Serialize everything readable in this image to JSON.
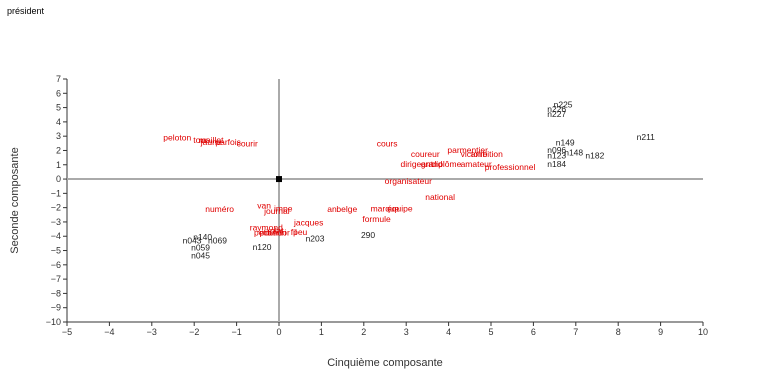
{
  "corner_label": "président",
  "colors": {
    "word": "#e00000",
    "case": "#222222",
    "axis_zero": "#aaaaaa",
    "frame": "#333333",
    "origin_marker": "#000000"
  },
  "chart_data": {
    "type": "scatter",
    "title": "",
    "xlabel": "Cinquième composante",
    "ylabel": "Seconde composante",
    "xlim": [
      -5,
      10
    ],
    "ylim": [
      -10,
      7
    ],
    "xticks": [
      "−5",
      "−4",
      "−3",
      "−2",
      "−1",
      "0",
      "1",
      "2",
      "3",
      "4",
      "5",
      "6",
      "7",
      "8",
      "9",
      "10"
    ],
    "yticks": [
      "−10",
      "−9",
      "−8",
      "−7",
      "−6",
      "−5",
      "−4",
      "−3",
      "−2",
      "−1",
      "0",
      "1",
      "2",
      "3",
      "4",
      "5",
      "6",
      "7"
    ],
    "grid": false,
    "origin_marker": [
      0,
      0
    ],
    "series": [
      {
        "kind": "word",
        "points": [
          {
            "label": "peloton",
            "x": -2.4,
            "y": 2.9
          },
          {
            "label": "tour",
            "x": -1.85,
            "y": 2.75
          },
          {
            "label": "maillot",
            "x": -1.6,
            "y": 2.75
          },
          {
            "label": "jaune",
            "x": -1.6,
            "y": 2.6
          },
          {
            "label": "parfois",
            "x": -1.2,
            "y": 2.6
          },
          {
            "label": "courir",
            "x": -0.75,
            "y": 2.5
          },
          {
            "label": "cours",
            "x": 2.55,
            "y": 2.5
          },
          {
            "label": "parmentier",
            "x": 4.45,
            "y": 2.05
          },
          {
            "label": "coureur",
            "x": 3.45,
            "y": 1.75
          },
          {
            "label": "victoire",
            "x": 4.6,
            "y": 1.75
          },
          {
            "label": "ambition",
            "x": 4.9,
            "y": 1.75
          },
          {
            "label": "dirigeant",
            "x": 3.25,
            "y": 1.05
          },
          {
            "label": "grand",
            "x": 3.6,
            "y": 1.05
          },
          {
            "label": "diplôme",
            "x": 3.95,
            "y": 1.05
          },
          {
            "label": "amateur",
            "x": 4.65,
            "y": 1.05
          },
          {
            "label": "professionnel",
            "x": 5.45,
            "y": 0.85
          },
          {
            "label": "organisateur",
            "x": 3.05,
            "y": -0.15
          },
          {
            "label": "national",
            "x": 3.8,
            "y": -1.25
          },
          {
            "label": "numéro",
            "x": -1.4,
            "y": -2.1
          },
          {
            "label": "van",
            "x": -0.35,
            "y": -1.85
          },
          {
            "label": "impe",
            "x": 0.1,
            "y": -2.05
          },
          {
            "label": "journal",
            "x": -0.05,
            "y": -2.25
          },
          {
            "label": "an",
            "x": 1.25,
            "y": -2.1
          },
          {
            "label": "belge",
            "x": 1.6,
            "y": -2.1
          },
          {
            "label": "marque",
            "x": 2.5,
            "y": -2.05
          },
          {
            "label": "équipe",
            "x": 2.85,
            "y": -2.05
          },
          {
            "label": "formule",
            "x": 2.3,
            "y": -2.8
          },
          {
            "label": "jacques",
            "x": 0.7,
            "y": -3.05
          },
          {
            "label": "raymond",
            "x": -0.3,
            "y": -3.4
          },
          {
            "label": "henri",
            "x": -0.05,
            "y": -3.75
          },
          {
            "label": "petit",
            "x": -0.4,
            "y": -3.75
          },
          {
            "label": "poulidor",
            "x": -0.1,
            "y": -3.75
          },
          {
            "label": "fil",
            "x": 0.35,
            "y": -3.7
          },
          {
            "label": "peu",
            "x": 0.5,
            "y": -3.7
          },
          {
            "label": "plat",
            "x": -0.05,
            "y": -3.6
          }
        ]
      },
      {
        "kind": "case",
        "points": [
          {
            "label": "n225",
            "x": 6.7,
            "y": 5.2
          },
          {
            "label": "n226",
            "x": 6.55,
            "y": 4.9
          },
          {
            "label": "n227",
            "x": 6.55,
            "y": 4.55
          },
          {
            "label": "n211",
            "x": 8.65,
            "y": 2.95
          },
          {
            "label": "n149",
            "x": 6.75,
            "y": 2.55
          },
          {
            "label": "n096",
            "x": 6.55,
            "y": 2.05
          },
          {
            "label": "n148",
            "x": 6.95,
            "y": 1.85
          },
          {
            "label": "n123",
            "x": 6.55,
            "y": 1.65
          },
          {
            "label": "n182",
            "x": 7.45,
            "y": 1.65
          },
          {
            "label": "n184",
            "x": 6.55,
            "y": 1.05
          },
          {
            "label": "n203",
            "x": 0.85,
            "y": -4.15
          },
          {
            "label": "290",
            "x": 2.1,
            "y": -3.9
          },
          {
            "label": "n120",
            "x": -0.4,
            "y": -4.75
          },
          {
            "label": "n140",
            "x": -1.8,
            "y": -4.05
          },
          {
            "label": "n043",
            "x": -2.05,
            "y": -4.3
          },
          {
            "label": "n069",
            "x": -1.45,
            "y": -4.3
          },
          {
            "label": "n059",
            "x": -1.85,
            "y": -4.8
          },
          {
            "label": "n045",
            "x": -1.85,
            "y": -5.35
          }
        ]
      }
    ]
  }
}
